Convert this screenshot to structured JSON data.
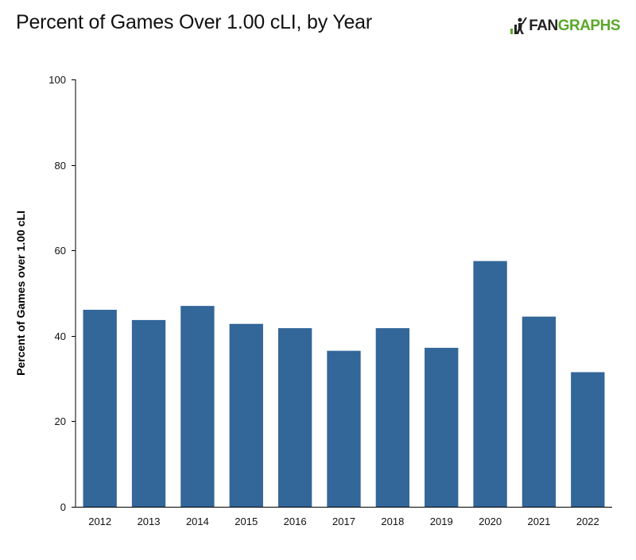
{
  "header": {
    "title": "Percent of Games Over 1.00 cLI, by Year",
    "logo": {
      "text_fan": "FAN",
      "text_graphs": "GRAPHS",
      "color_fan": "#222222",
      "color_graphs": "#5aa82a"
    }
  },
  "chart_data": {
    "type": "bar",
    "title": "Percent of Games Over 1.00 cLI, by Year",
    "xlabel": "",
    "ylabel": "Percent of Games over 1.00 cLI",
    "categories": [
      "2012",
      "2013",
      "2014",
      "2015",
      "2016",
      "2017",
      "2018",
      "2019",
      "2020",
      "2021",
      "2022"
    ],
    "values": [
      46.1,
      43.7,
      47.0,
      42.8,
      41.8,
      36.5,
      41.8,
      37.2,
      57.5,
      44.5,
      31.5
    ],
    "ylim": [
      0,
      100
    ],
    "yticks": [
      0,
      20,
      40,
      60,
      80,
      100
    ],
    "grid": false,
    "bar_color": "#336699"
  }
}
